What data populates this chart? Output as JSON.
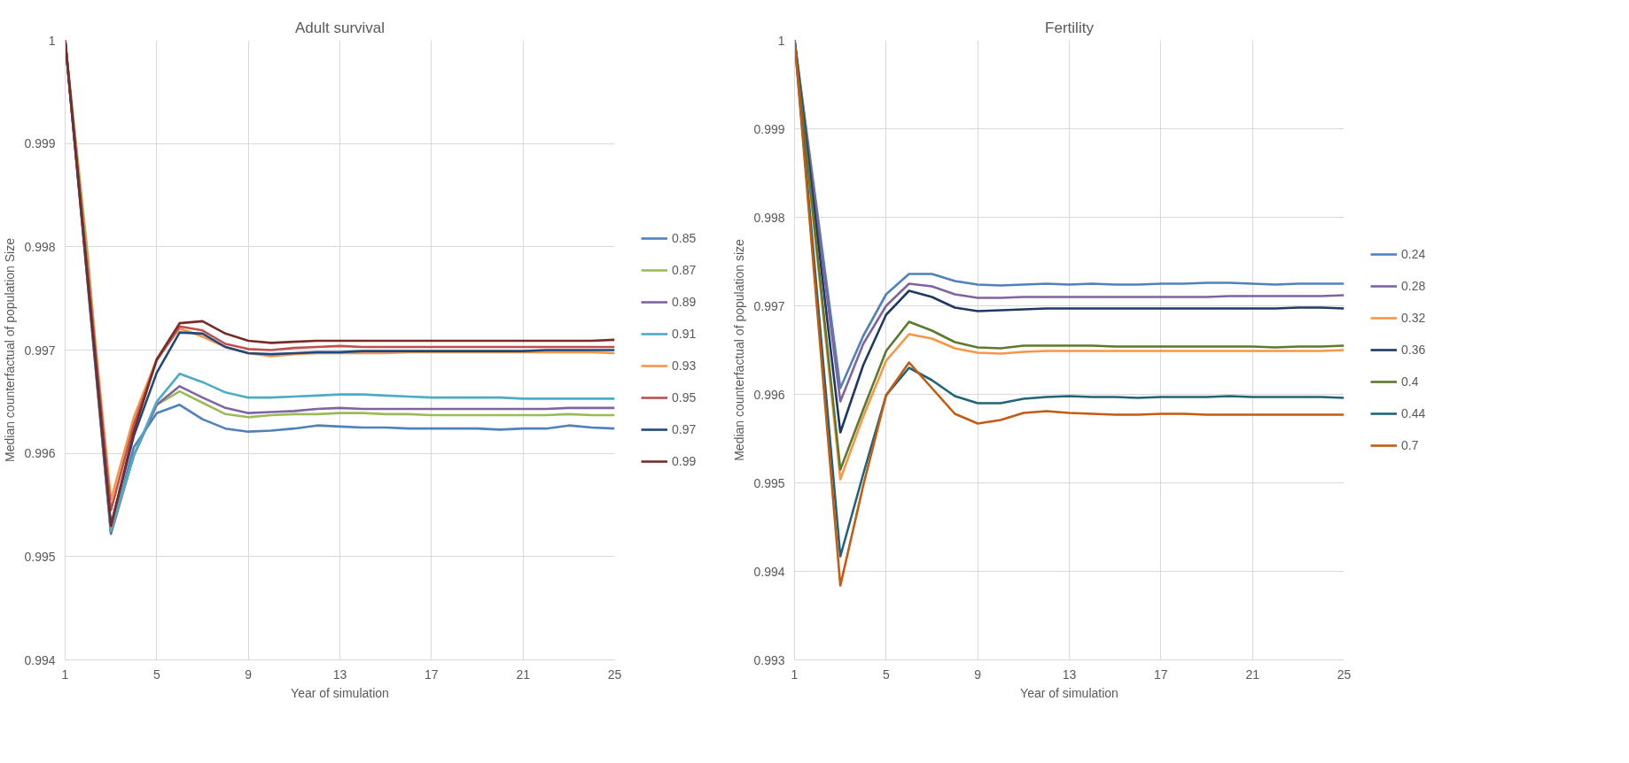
{
  "chart_data": [
    {
      "type": "line",
      "title": "Adult survival",
      "xlabel": "Year of simulation",
      "ylabel": "Median counterfactual of population Size",
      "x": [
        1,
        2,
        3,
        4,
        5,
        6,
        7,
        8,
        9,
        10,
        11,
        12,
        13,
        14,
        15,
        16,
        17,
        18,
        19,
        20,
        21,
        22,
        23,
        24,
        25
      ],
      "xlim": [
        1,
        25
      ],
      "xticks": [
        1,
        5,
        9,
        13,
        17,
        21,
        25
      ],
      "ylim": [
        0.994,
        1
      ],
      "yticks": [
        0.994,
        0.995,
        0.996,
        0.997,
        0.998,
        0.999,
        1
      ],
      "grid": true,
      "legend": "right",
      "line_style": "solid",
      "series": [
        {
          "name": "0.85",
          "color": "#4f81bd",
          "values": [
            1,
            0.99762,
            0.99523,
            0.99606,
            0.99639,
            0.99647,
            0.99633,
            0.99624,
            0.99621,
            0.99622,
            0.99624,
            0.99627,
            0.99626,
            0.99625,
            0.99625,
            0.99624,
            0.99624,
            0.99624,
            0.99624,
            0.99623,
            0.99624,
            0.99624,
            0.99627,
            0.99625,
            0.99624
          ]
        },
        {
          "name": "0.87",
          "color": "#9bbb59",
          "values": [
            1,
            0.9979,
            0.99525,
            0.99598,
            0.99647,
            0.9966,
            0.99649,
            0.99638,
            0.99635,
            0.99637,
            0.99638,
            0.99638,
            0.99639,
            0.99639,
            0.99638,
            0.99638,
            0.99637,
            0.99637,
            0.99637,
            0.99637,
            0.99637,
            0.99637,
            0.99638,
            0.99637,
            0.99637
          ]
        },
        {
          "name": "0.89",
          "color": "#8064a2",
          "values": [
            1,
            0.99761,
            0.99522,
            0.99598,
            0.99647,
            0.99665,
            0.99654,
            0.99644,
            0.99639,
            0.9964,
            0.99641,
            0.99643,
            0.99644,
            0.99643,
            0.99643,
            0.99643,
            0.99643,
            0.99643,
            0.99643,
            0.99643,
            0.99643,
            0.99643,
            0.99644,
            0.99644,
            0.99644
          ]
        },
        {
          "name": "0.91",
          "color": "#4bacc6",
          "values": [
            1,
            0.99763,
            0.99525,
            0.99598,
            0.9965,
            0.99677,
            0.99669,
            0.99659,
            0.99654,
            0.99654,
            0.99655,
            0.99656,
            0.99657,
            0.99657,
            0.99656,
            0.99655,
            0.99654,
            0.99654,
            0.99654,
            0.99654,
            0.99653,
            0.99653,
            0.99653,
            0.99653,
            0.99653
          ]
        },
        {
          "name": "0.93",
          "color": "#f79646",
          "values": [
            1,
            0.99778,
            0.99555,
            0.99635,
            0.99691,
            0.99721,
            0.99713,
            0.99703,
            0.99697,
            0.99694,
            0.99696,
            0.99697,
            0.99697,
            0.99697,
            0.99697,
            0.99698,
            0.99698,
            0.99698,
            0.99698,
            0.99698,
            0.99698,
            0.99698,
            0.99698,
            0.99698,
            0.99697
          ]
        },
        {
          "name": "0.95",
          "color": "#c0504d",
          "values": [
            1,
            0.99773,
            0.99545,
            0.99628,
            0.9969,
            0.99723,
            0.99719,
            0.99706,
            0.99701,
            0.997,
            0.99702,
            0.99703,
            0.99704,
            0.99703,
            0.99703,
            0.99703,
            0.99703,
            0.99703,
            0.99703,
            0.99703,
            0.99703,
            0.99703,
            0.99703,
            0.99703,
            0.99703
          ]
        },
        {
          "name": "0.97",
          "color": "#1f497d",
          "values": [
            1,
            0.99765,
            0.9953,
            0.99617,
            0.99678,
            0.99717,
            0.99716,
            0.99703,
            0.99697,
            0.99696,
            0.99697,
            0.99698,
            0.99698,
            0.99699,
            0.99699,
            0.99699,
            0.99699,
            0.99699,
            0.99699,
            0.99699,
            0.99699,
            0.997,
            0.997,
            0.997,
            0.997
          ]
        },
        {
          "name": "0.99",
          "color": "#772c2a",
          "values": [
            1,
            0.99765,
            0.9953,
            0.99621,
            0.99691,
            0.99726,
            0.99728,
            0.99716,
            0.99709,
            0.99707,
            0.99708,
            0.99709,
            0.99709,
            0.99709,
            0.99709,
            0.99709,
            0.99709,
            0.99709,
            0.99709,
            0.99709,
            0.99709,
            0.99709,
            0.99709,
            0.99709,
            0.9971
          ]
        }
      ]
    },
    {
      "type": "line",
      "title": "Fertility",
      "xlabel": "Year of simulation",
      "ylabel": "Median counterfactual of population size",
      "x": [
        1,
        2,
        3,
        4,
        5,
        6,
        7,
        8,
        9,
        10,
        11,
        12,
        13,
        14,
        15,
        16,
        17,
        18,
        19,
        20,
        21,
        22,
        23,
        24,
        25
      ],
      "xlim": [
        1,
        25
      ],
      "xticks": [
        1,
        5,
        9,
        13,
        17,
        21,
        25
      ],
      "ylim": [
        0.993,
        1
      ],
      "yticks": [
        0.993,
        0.994,
        0.995,
        0.996,
        0.997,
        0.998,
        0.999,
        1
      ],
      "grid": true,
      "legend": "right",
      "line_style": "solid",
      "series": [
        {
          "name": "0.24",
          "color": "#4f81bd",
          "values": [
            1,
            0.99804,
            0.99607,
            0.99666,
            0.99713,
            0.99736,
            0.99736,
            0.99728,
            0.99724,
            0.99723,
            0.99724,
            0.99725,
            0.99724,
            0.99725,
            0.99724,
            0.99724,
            0.99725,
            0.99725,
            0.99726,
            0.99726,
            0.99725,
            0.99724,
            0.99725,
            0.99725,
            0.99725
          ]
        },
        {
          "name": "0.28",
          "color": "#8064a2",
          "values": [
            1,
            0.99796,
            0.99592,
            0.99657,
            0.997,
            0.99725,
            0.99722,
            0.99713,
            0.99709,
            0.99709,
            0.9971,
            0.9971,
            0.9971,
            0.9971,
            0.9971,
            0.9971,
            0.9971,
            0.9971,
            0.9971,
            0.99711,
            0.99711,
            0.99711,
            0.99711,
            0.99711,
            0.99712
          ]
        },
        {
          "name": "0.32",
          "color": "#f79646",
          "values": [
            1,
            0.99752,
            0.99504,
            0.99575,
            0.99638,
            0.99668,
            0.99663,
            0.99652,
            0.99647,
            0.99646,
            0.99648,
            0.99649,
            0.99649,
            0.99649,
            0.99649,
            0.99649,
            0.99649,
            0.99649,
            0.99649,
            0.99649,
            0.99649,
            0.99649,
            0.99649,
            0.99649,
            0.9965
          ]
        },
        {
          "name": "0.36",
          "color": "#1f3864",
          "values": [
            1,
            0.99779,
            0.99557,
            0.99633,
            0.9969,
            0.99717,
            0.9971,
            0.99698,
            0.99694,
            0.99695,
            0.99696,
            0.99697,
            0.99697,
            0.99697,
            0.99697,
            0.99697,
            0.99697,
            0.99697,
            0.99697,
            0.99697,
            0.99697,
            0.99697,
            0.99698,
            0.99698,
            0.99697
          ]
        },
        {
          "name": "0.4",
          "color": "#5b7a2e",
          "values": [
            1,
            0.99758,
            0.99515,
            0.99583,
            0.99649,
            0.99682,
            0.99672,
            0.99659,
            0.99653,
            0.99652,
            0.99655,
            0.99655,
            0.99655,
            0.99655,
            0.99654,
            0.99654,
            0.99654,
            0.99654,
            0.99654,
            0.99654,
            0.99654,
            0.99653,
            0.99654,
            0.99654,
            0.99655
          ]
        },
        {
          "name": "0.44",
          "color": "#1f6477",
          "values": [
            1,
            0.99709,
            0.99417,
            0.9951,
            0.99599,
            0.9963,
            0.99616,
            0.99598,
            0.9959,
            0.9959,
            0.99595,
            0.99597,
            0.99598,
            0.99597,
            0.99597,
            0.99596,
            0.99597,
            0.99597,
            0.99597,
            0.99598,
            0.99597,
            0.99597,
            0.99597,
            0.99597,
            0.99596
          ]
        },
        {
          "name": "0.7",
          "color": "#c55a11",
          "values": [
            1,
            0.99692,
            0.99384,
            0.99497,
            0.99599,
            0.99636,
            0.99607,
            0.99578,
            0.99567,
            0.99571,
            0.99579,
            0.99581,
            0.99579,
            0.99578,
            0.99577,
            0.99577,
            0.99578,
            0.99578,
            0.99577,
            0.99577,
            0.99577,
            0.99577,
            0.99577,
            0.99577,
            0.99577
          ]
        }
      ]
    }
  ]
}
